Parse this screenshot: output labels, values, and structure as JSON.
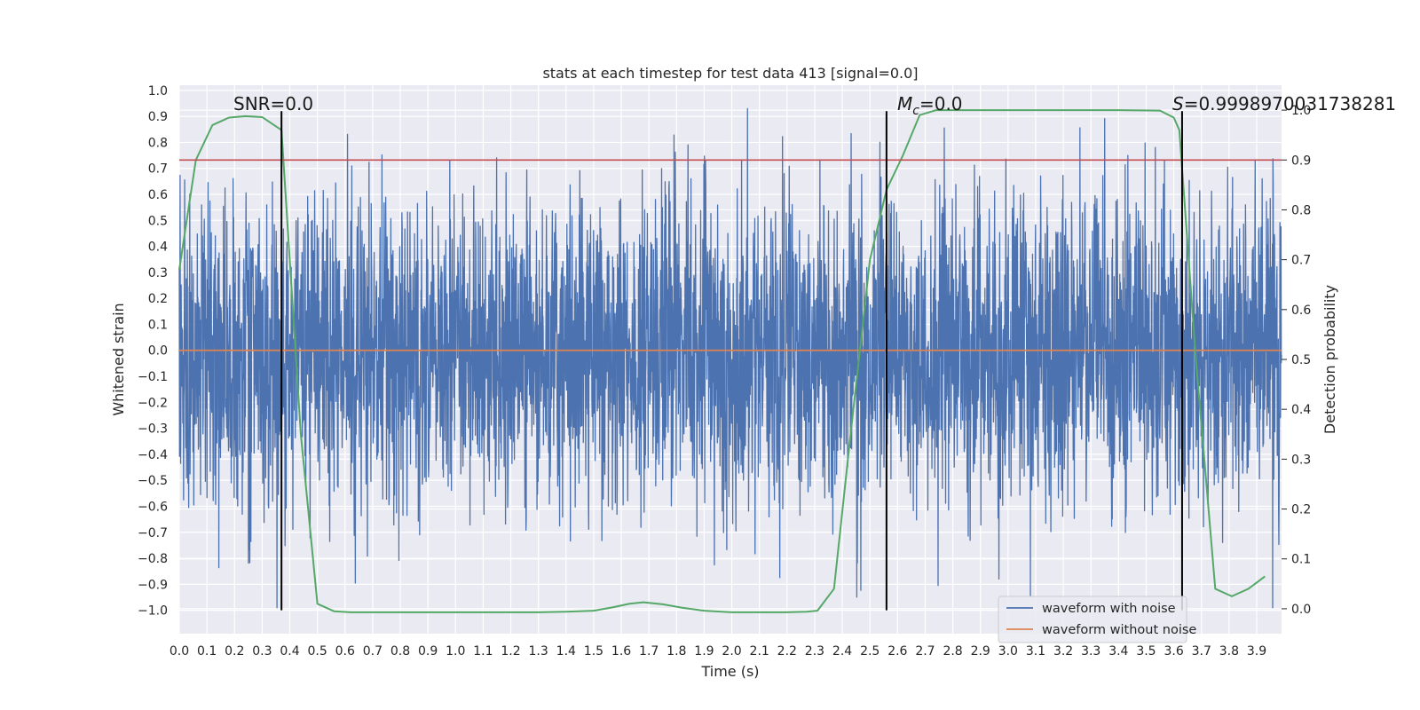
{
  "chart_data": {
    "type": "line",
    "title": "stats at each timestep for test data 413 [signal=0.0]",
    "xlabel": "Time (s)",
    "ylabel_left": "Whitened strain",
    "ylabel_right": "Detection probability",
    "xlim": [
      0.0,
      3.99
    ],
    "ylim_left": [
      -1.09,
      1.02
    ],
    "ylim_right": [
      -0.05,
      1.05
    ],
    "x_ticks": [
      "0.0",
      "0.1",
      "0.2",
      "0.3",
      "0.4",
      "0.5",
      "0.6",
      "0.7",
      "0.8",
      "0.9",
      "1.0",
      "1.1",
      "1.2",
      "1.3",
      "1.4",
      "1.5",
      "1.6",
      "1.7",
      "1.8",
      "1.9",
      "2.0",
      "2.1",
      "2.2",
      "2.3",
      "2.4",
      "2.5",
      "2.6",
      "2.7",
      "2.8",
      "2.9",
      "3.0",
      "3.1",
      "3.2",
      "3.3",
      "3.4",
      "3.5",
      "3.6",
      "3.7",
      "3.8",
      "3.9"
    ],
    "y_ticks_left": [
      "1.0",
      "0.9",
      "0.8",
      "0.7",
      "0.6",
      "0.5",
      "0.4",
      "0.3",
      "0.2",
      "0.1",
      "0.0",
      "−0.1",
      "−0.2",
      "−0.3",
      "−0.4",
      "−0.5",
      "−0.6",
      "−0.7",
      "−0.8",
      "−0.9",
      "−1.0"
    ],
    "y_ticks_right": [
      "1.0",
      "0.9",
      "0.8",
      "0.7",
      "0.6",
      "0.5",
      "0.4",
      "0.3",
      "0.2",
      "0.1",
      "0.0"
    ],
    "grid": true,
    "legend_position": "bottom-right",
    "series": [
      {
        "name": "waveform with noise",
        "axis": "left",
        "color": "#4c72b0",
        "kind": "noise",
        "sigma": 0.3,
        "seed": 413
      },
      {
        "name": "waveform without noise",
        "axis": "left",
        "color": "#dd8452",
        "kind": "line",
        "x": [
          0.0,
          3.99
        ],
        "y": [
          0.0,
          0.0
        ]
      },
      {
        "axis": "right",
        "color": "#55a868",
        "kind": "line",
        "x": [
          0.0,
          0.06,
          0.12,
          0.18,
          0.24,
          0.3,
          0.37,
          0.44,
          0.5,
          0.56,
          0.62,
          0.7,
          0.8,
          0.9,
          1.0,
          1.1,
          1.2,
          1.3,
          1.4,
          1.5,
          1.57,
          1.63,
          1.68,
          1.75,
          1.82,
          1.9,
          2.0,
          2.1,
          2.2,
          2.27,
          2.31,
          2.37,
          2.43,
          2.5,
          2.56,
          2.62,
          2.68,
          2.74,
          2.8,
          3.0,
          3.2,
          3.4,
          3.55,
          3.6,
          3.62,
          3.68,
          3.75,
          3.81,
          3.87,
          3.93
        ],
        "y": [
          0.68,
          0.9,
          0.97,
          0.985,
          0.988,
          0.986,
          0.96,
          0.35,
          0.01,
          -0.005,
          -0.007,
          -0.007,
          -0.007,
          -0.007,
          -0.007,
          -0.007,
          -0.007,
          -0.007,
          -0.006,
          -0.004,
          0.003,
          0.01,
          0.013,
          0.009,
          0.002,
          -0.004,
          -0.007,
          -0.007,
          -0.007,
          -0.006,
          -0.004,
          0.04,
          0.35,
          0.7,
          0.84,
          0.91,
          0.99,
          1.0,
          1.0,
          1.0,
          1.0,
          1.0,
          0.999,
          0.985,
          0.96,
          0.5,
          0.04,
          0.025,
          0.04,
          0.065
        ]
      },
      {
        "axis": "right",
        "color": "#c44e52",
        "kind": "hline",
        "y": 0.9
      }
    ],
    "vlines": [
      0.37,
      2.56,
      3.63
    ],
    "vline_range_left": [
      -1.0,
      0.92
    ],
    "annotations": [
      {
        "text": "SNR=0.0",
        "x": 0.2
      },
      {
        "prefix": "M",
        "subscript": "c",
        "text": "=0.0",
        "x": 2.6
      },
      {
        "prefix": "S",
        "text": "=0.9998970031738281",
        "x": 3.6
      }
    ]
  }
}
